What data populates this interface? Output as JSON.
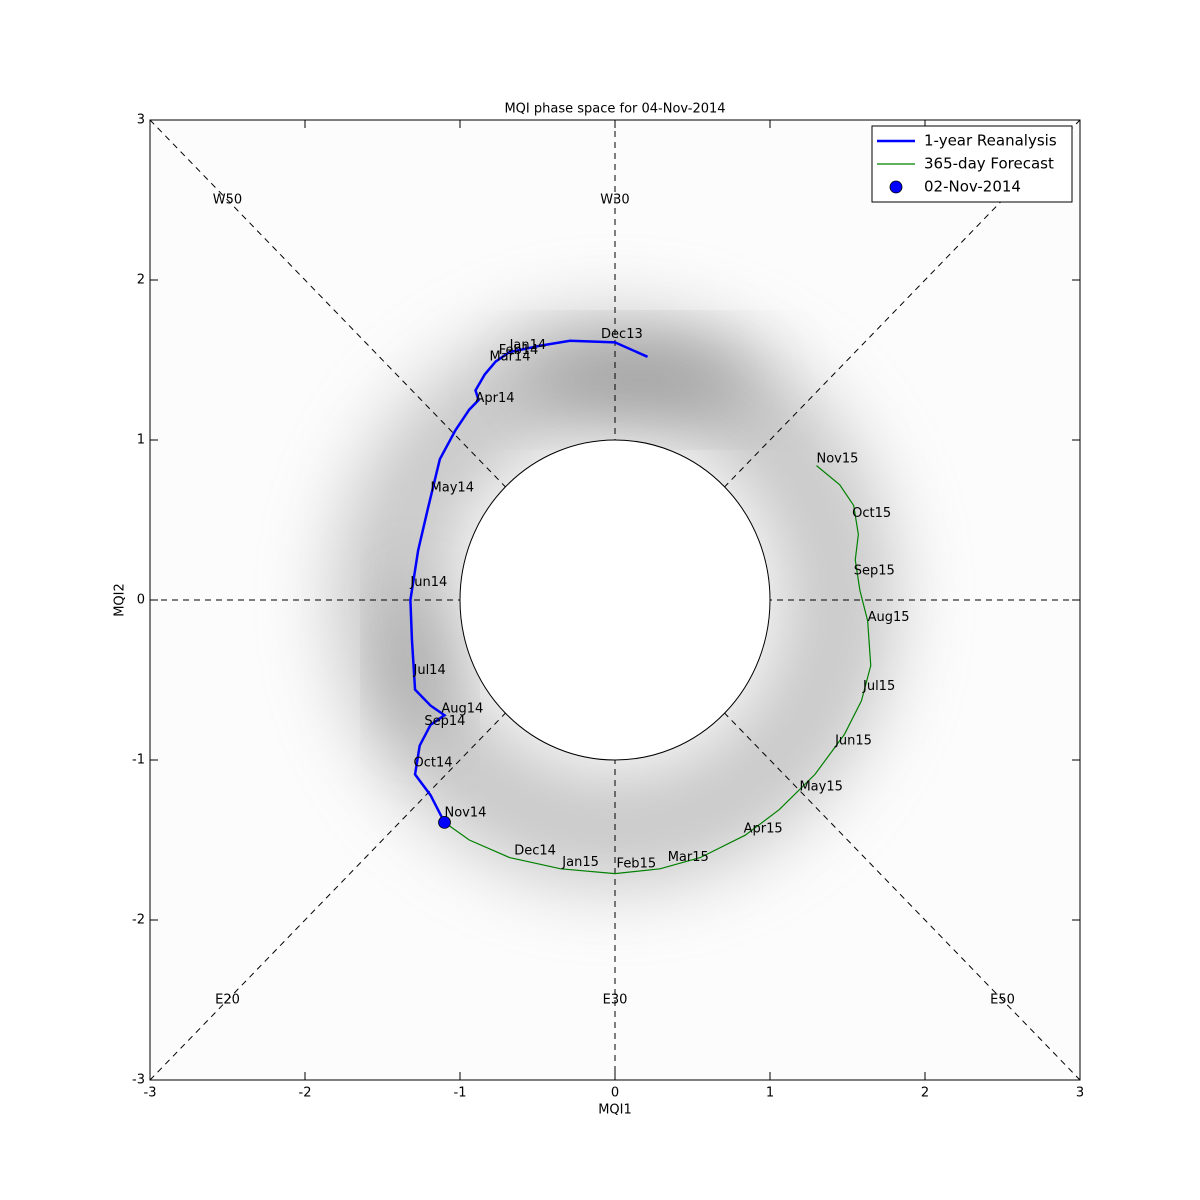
{
  "chart_data": {
    "type": "line",
    "title": "MQI phase space for 04-Nov-2014",
    "xlabel": "MQI1",
    "ylabel": "MQI2",
    "xlim": [
      -3,
      3
    ],
    "ylim": [
      -3,
      3
    ],
    "xticks": [
      -3,
      -2,
      -1,
      0,
      1,
      2,
      3
    ],
    "yticks": [
      -3,
      -2,
      -1,
      0,
      1,
      2,
      3
    ],
    "legend": "upper right",
    "series": [
      {
        "name": "1-year Reanalysis",
        "color": "#0000ff",
        "width": 2.5,
        "x": [
          0.21,
          0,
          -0.29,
          -0.48,
          -0.68,
          -0.77,
          -0.84,
          -0.9,
          -0.88,
          -0.94,
          -1.03,
          -1.13,
          -1.21,
          -1.27,
          -1.32,
          -1.31,
          -1.29,
          -1.19,
          -1.1,
          -1.19,
          -1.26,
          -1.29,
          -1.19,
          -1.1
        ],
        "y": [
          1.52,
          1.61,
          1.62,
          1.59,
          1.55,
          1.49,
          1.41,
          1.31,
          1.25,
          1.19,
          1.06,
          0.88,
          0.56,
          0.31,
          0,
          -0.25,
          -0.56,
          -0.66,
          -0.72,
          -0.78,
          -0.91,
          -1.09,
          -1.22,
          -1.39
        ]
      },
      {
        "name": "365-day Forecast",
        "color": "#008000",
        "width": 1.2,
        "x": [
          -1.1,
          -0.94,
          -0.68,
          -0.35,
          0,
          0.29,
          0.55,
          0.84,
          1.06,
          1.29,
          1.48,
          1.59,
          1.65,
          1.63,
          1.58,
          1.55,
          1.57,
          1.54,
          1.45,
          1.3
        ],
        "y": [
          -1.39,
          -1.5,
          -1.61,
          -1.68,
          -1.71,
          -1.68,
          -1.61,
          -1.47,
          -1.31,
          -1.09,
          -0.84,
          -0.63,
          -0.41,
          -0.13,
          0.06,
          0.25,
          0.41,
          0.59,
          0.72,
          0.84
        ]
      },
      {
        "name": "02-Nov-2014",
        "color": "#0000ff",
        "marker": "o",
        "x": [
          -1.1
        ],
        "y": [
          -1.39
        ]
      }
    ],
    "annotations": [
      {
        "text": "Dec13",
        "x": -0.09,
        "y": 1.66
      },
      {
        "text": "Jan14",
        "x": -0.68,
        "y": 1.59
      },
      {
        "text": "Feb14",
        "x": -0.75,
        "y": 1.56
      },
      {
        "text": "Mar14",
        "x": -0.81,
        "y": 1.52
      },
      {
        "text": "Apr14",
        "x": -0.9,
        "y": 1.26
      },
      {
        "text": "May14",
        "x": -1.19,
        "y": 0.7
      },
      {
        "text": "Jun14",
        "x": -1.32,
        "y": 0.11
      },
      {
        "text": "Jul14",
        "x": -1.3,
        "y": -0.44
      },
      {
        "text": "Aug14",
        "x": -1.12,
        "y": -0.68
      },
      {
        "text": "Sep14",
        "x": -1.23,
        "y": -0.76
      },
      {
        "text": "Oct14",
        "x": -1.3,
        "y": -1.02
      },
      {
        "text": "Nov14",
        "x": -1.1,
        "y": -1.33
      },
      {
        "text": "Dec14",
        "x": -0.65,
        "y": -1.57
      },
      {
        "text": "Jan15",
        "x": -0.34,
        "y": -1.64
      },
      {
        "text": "Feb15",
        "x": 0.01,
        "y": -1.65
      },
      {
        "text": "Mar15",
        "x": 0.34,
        "y": -1.61
      },
      {
        "text": "Apr15",
        "x": 0.83,
        "y": -1.43
      },
      {
        "text": "May15",
        "x": 1.19,
        "y": -1.17
      },
      {
        "text": "Jun15",
        "x": 1.42,
        "y": -0.88
      },
      {
        "text": "Jul15",
        "x": 1.6,
        "y": -0.54
      },
      {
        "text": "Aug15",
        "x": 1.63,
        "y": -0.11
      },
      {
        "text": "Sep15",
        "x": 1.54,
        "y": 0.18
      },
      {
        "text": "Oct15",
        "x": 1.53,
        "y": 0.54
      },
      {
        "text": "Nov15",
        "x": 1.3,
        "y": 0.88
      }
    ],
    "phase_labels": [
      {
        "text": "W50",
        "x": -2.5,
        "y": 2.5
      },
      {
        "text": "W30",
        "x": 0,
        "y": 2.5
      },
      {
        "text": "E20",
        "x": -2.5,
        "y": -2.5
      },
      {
        "text": "E30",
        "x": 0,
        "y": -2.5
      },
      {
        "text": "E50",
        "x": 2.5,
        "y": -2.5
      }
    ]
  }
}
